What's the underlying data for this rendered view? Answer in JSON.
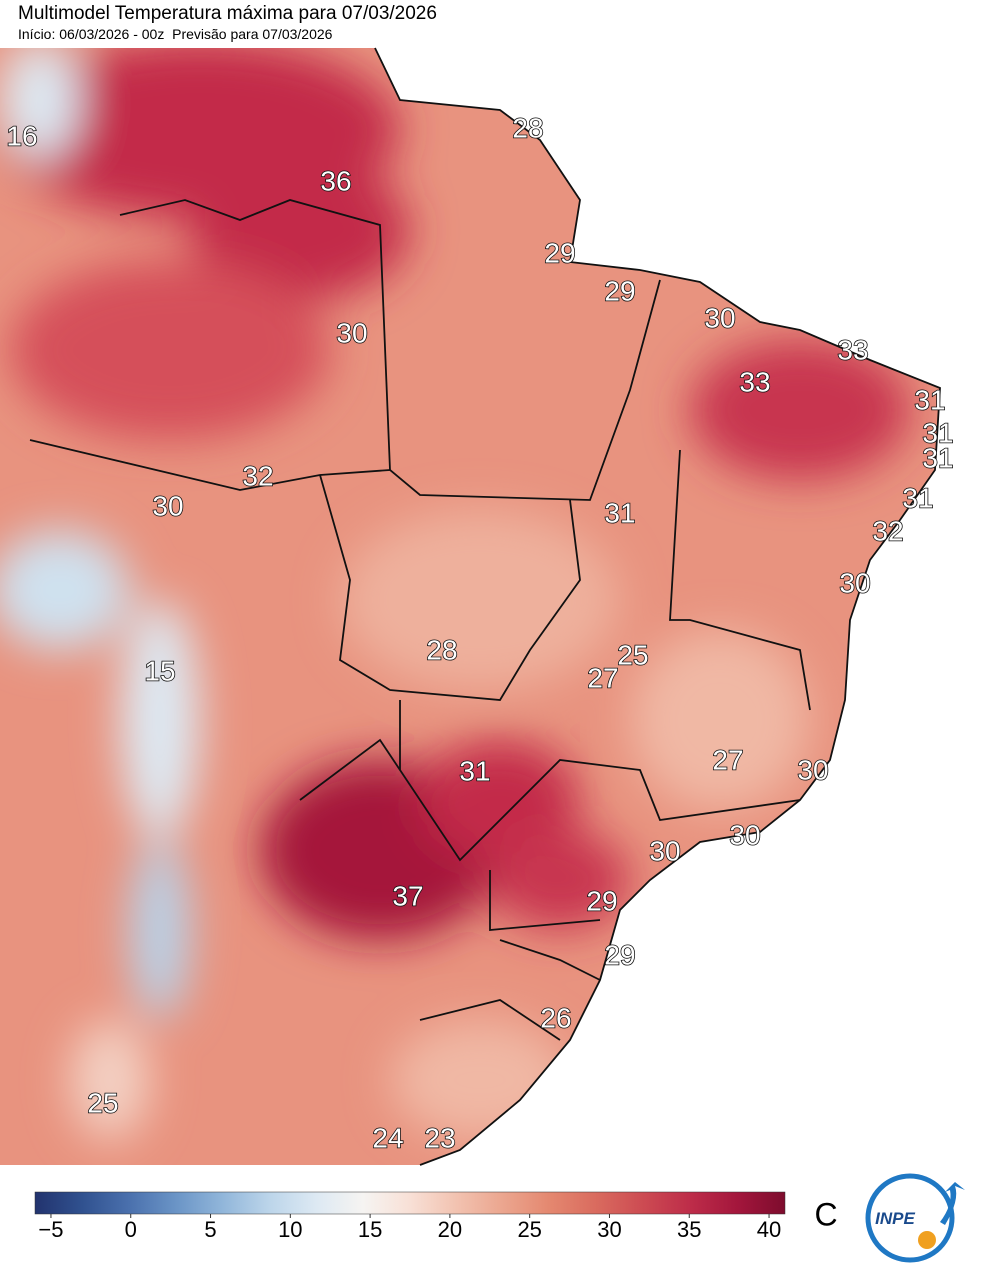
{
  "header": {
    "title": "Multimodel Temperatura máxima para 07/03/2026",
    "subtitle": "Início: 06/03/2026 - 00z  Previsão para 07/03/2026"
  },
  "map": {
    "labels": [
      16,
      28,
      36,
      29,
      29,
      30,
      30,
      33,
      33,
      31,
      31,
      31,
      32,
      30,
      31,
      31,
      32,
      30,
      15,
      28,
      25,
      27,
      27,
      30,
      31,
      30,
      30,
      37,
      29,
      29,
      26,
      25,
      24,
      23
    ]
  },
  "colorbar": {
    "lim": [
      -6,
      41
    ],
    "ticks": [
      {
        "value": -5,
        "label": "−5"
      },
      0,
      5,
      10,
      15,
      20,
      25,
      30,
      35,
      40
    ],
    "colors": [
      "#22336e",
      "#30518f",
      "#4a70ad",
      "#6a94c6",
      "#91b6da",
      "#bcd5ea",
      "#dde9f3",
      "#f6f4f2",
      "#f8e0d6",
      "#f2c2b0",
      "#eba58e",
      "#e4876f",
      "#d96a5e",
      "#cc4a52",
      "#bd2c49",
      "#a3163c",
      "#7d0c2d"
    ],
    "unit": "C"
  },
  "logo": "INPE"
}
